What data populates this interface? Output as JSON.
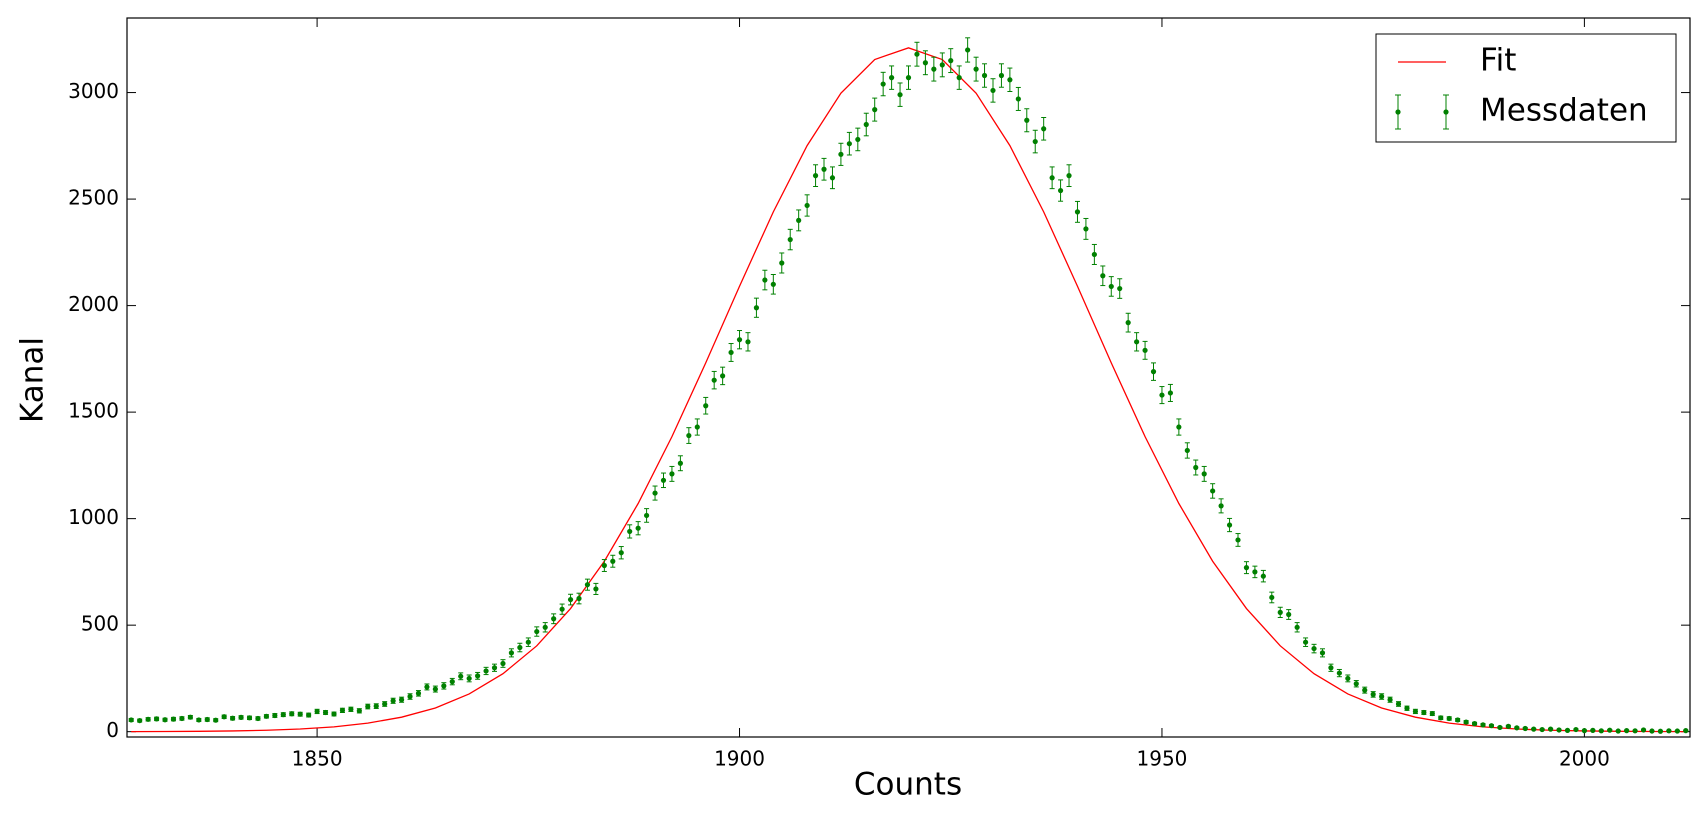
{
  "chart_data": {
    "type": "errorbar",
    "xlabel": "Counts",
    "ylabel": "Kanal",
    "xlim": [
      1827.5,
      2012.5
    ],
    "ylim": [
      -25,
      3350
    ],
    "xticks": [
      1850,
      1900,
      1950,
      2000
    ],
    "yticks": [
      0,
      500,
      1000,
      1500,
      2000,
      2500,
      3000
    ],
    "legend": "upper right",
    "series": [
      {
        "name": "Fit",
        "color": "#ff0000",
        "style": "line",
        "x": [
          1828,
          1832,
          1836,
          1840,
          1844,
          1848,
          1852,
          1856,
          1860,
          1864,
          1868,
          1872,
          1876,
          1880,
          1884,
          1888,
          1892,
          1896,
          1900,
          1904,
          1908,
          1912,
          1916,
          1920,
          1924,
          1928,
          1932,
          1936,
          1940,
          1944,
          1948,
          1952,
          1956,
          1960,
          1964,
          1968,
          1972,
          1976,
          1980,
          1984,
          1988,
          1992,
          1996,
          2000,
          2004,
          2008,
          2012
        ],
        "values": [
          0.4,
          0.8,
          1.7,
          3.4,
          6.6,
          12.4,
          22.6,
          40,
          68,
          111,
          177,
          272,
          403,
          578,
          800,
          1071,
          1385,
          1731,
          2091,
          2440,
          2751,
          2997,
          3155,
          3210,
          3155,
          2997,
          2751,
          2440,
          2091,
          1731,
          1385,
          1071,
          800,
          578,
          403,
          272,
          177,
          111,
          68,
          40,
          22.6,
          12.4,
          6.6,
          3.4,
          1.7,
          0.8,
          0.4
        ]
      },
      {
        "name": "Messdaten",
        "color": "#008000",
        "style": "errorbar",
        "x": [
          1828,
          1829,
          1830,
          1831,
          1832,
          1833,
          1834,
          1835,
          1836,
          1837,
          1838,
          1839,
          1840,
          1841,
          1842,
          1843,
          1844,
          1845,
          1846,
          1847,
          1848,
          1849,
          1850,
          1851,
          1852,
          1853,
          1854,
          1855,
          1856,
          1857,
          1858,
          1859,
          1860,
          1861,
          1862,
          1863,
          1864,
          1865,
          1866,
          1867,
          1868,
          1869,
          1870,
          1871,
          1872,
          1873,
          1874,
          1875,
          1876,
          1877,
          1878,
          1879,
          1880,
          1881,
          1882,
          1883,
          1884,
          1885,
          1886,
          1887,
          1888,
          1889,
          1890,
          1891,
          1892,
          1893,
          1894,
          1895,
          1896,
          1897,
          1898,
          1899,
          1900,
          1901,
          1902,
          1903,
          1904,
          1905,
          1906,
          1907,
          1908,
          1909,
          1910,
          1911,
          1912,
          1913,
          1914,
          1915,
          1916,
          1917,
          1918,
          1919,
          1920,
          1921,
          1922,
          1923,
          1924,
          1925,
          1926,
          1927,
          1928,
          1929,
          1930,
          1931,
          1932,
          1933,
          1934,
          1935,
          1936,
          1937,
          1938,
          1939,
          1940,
          1941,
          1942,
          1943,
          1944,
          1945,
          1946,
          1947,
          1948,
          1949,
          1950,
          1951,
          1952,
          1953,
          1954,
          1955,
          1956,
          1957,
          1958,
          1959,
          1960,
          1961,
          1962,
          1963,
          1964,
          1965,
          1966,
          1967,
          1968,
          1969,
          1970,
          1971,
          1972,
          1973,
          1974,
          1975,
          1976,
          1977,
          1978,
          1979,
          1980,
          1981,
          1982,
          1983,
          1984,
          1985,
          1986,
          1987,
          1988,
          1989,
          1990,
          1991,
          1992,
          1993,
          1994,
          1995,
          1996,
          1997,
          1998,
          1999,
          2000,
          2001,
          2002,
          2003,
          2004,
          2005,
          2006,
          2007,
          2008,
          2009,
          2010,
          2011,
          2012
        ],
        "values": [
          55,
          52,
          58,
          60,
          56,
          59,
          62,
          68,
          55,
          57,
          54,
          70,
          63,
          67,
          65,
          62,
          72,
          76,
          80,
          84,
          82,
          78,
          95,
          90,
          83,
          100,
          105,
          98,
          118,
          120,
          130,
          145,
          150,
          165,
          180,
          210,
          200,
          215,
          235,
          260,
          250,
          262,
          285,
          300,
          320,
          370,
          395,
          420,
          470,
          490,
          530,
          575,
          620,
          625,
          690,
          670,
          780,
          800,
          840,
          940,
          955,
          1015,
          1120,
          1180,
          1210,
          1260,
          1390,
          1430,
          1530,
          1650,
          1670,
          1780,
          1840,
          1830,
          1990,
          2120,
          2100,
          2200,
          2310,
          2400,
          2470,
          2610,
          2640,
          2600,
          2710,
          2760,
          2780,
          2850,
          2920,
          3040,
          3070,
          2990,
          3070,
          3180,
          3140,
          3110,
          3130,
          3150,
          3070,
          3200,
          3110,
          3080,
          3010,
          3080,
          3060,
          2970,
          2870,
          2770,
          2830,
          2600,
          2540,
          2610,
          2440,
          2360,
          2240,
          2140,
          2090,
          2080,
          1920,
          1830,
          1790,
          1690,
          1580,
          1590,
          1430,
          1320,
          1240,
          1210,
          1130,
          1060,
          970,
          900,
          770,
          750,
          730,
          630,
          560,
          550,
          490,
          420,
          390,
          370,
          300,
          275,
          250,
          225,
          195,
          175,
          165,
          150,
          130,
          110,
          95,
          90,
          85,
          65,
          62,
          55,
          45,
          38,
          32,
          28,
          20,
          25,
          18,
          15,
          12,
          10,
          12,
          8,
          6,
          10,
          5,
          6,
          4,
          7,
          3,
          5,
          4,
          8,
          3,
          2,
          4,
          3,
          5
        ],
        "errors": [
          7,
          7,
          8,
          8,
          7,
          8,
          8,
          8,
          7,
          8,
          7,
          8,
          8,
          8,
          8,
          8,
          8,
          9,
          9,
          9,
          9,
          9,
          10,
          9,
          9,
          10,
          10,
          10,
          11,
          11,
          11,
          12,
          12,
          13,
          13,
          14,
          14,
          15,
          15,
          16,
          16,
          16,
          17,
          17,
          18,
          19,
          20,
          20,
          22,
          22,
          23,
          24,
          25,
          25,
          26,
          26,
          28,
          28,
          29,
          31,
          31,
          32,
          33,
          34,
          35,
          35,
          37,
          38,
          39,
          41,
          41,
          42,
          43,
          43,
          45,
          46,
          46,
          47,
          48,
          49,
          50,
          51,
          51,
          51,
          52,
          53,
          53,
          53,
          54,
          55,
          55,
          55,
          55,
          56,
          56,
          56,
          56,
          56,
          55,
          57,
          56,
          55,
          55,
          55,
          55,
          54,
          54,
          53,
          53,
          51,
          50,
          51,
          49,
          49,
          47,
          46,
          46,
          46,
          44,
          43,
          42,
          41,
          40,
          40,
          38,
          36,
          35,
          35,
          34,
          33,
          31,
          30,
          28,
          27,
          27,
          25,
          24,
          23,
          22,
          20,
          20,
          19,
          17,
          17,
          16,
          15,
          14,
          13,
          13,
          12,
          11,
          10,
          10,
          9,
          9,
          8,
          8,
          7,
          7,
          6,
          6,
          5,
          4,
          5,
          4,
          4,
          3,
          3,
          3,
          3,
          2,
          3,
          2,
          2,
          2,
          3,
          2,
          2,
          2,
          3,
          2,
          1,
          2,
          2,
          2
        ]
      }
    ]
  }
}
